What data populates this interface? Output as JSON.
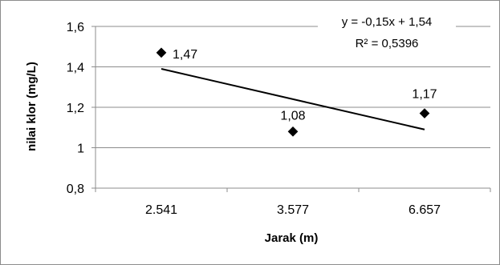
{
  "chart_data": {
    "type": "scatter",
    "x": [
      "2.541",
      "3.577",
      "6.657"
    ],
    "values": [
      1.47,
      1.08,
      1.17
    ],
    "data_labels": [
      "1,47",
      "1,08",
      "1,17"
    ],
    "xlabel": "Jarak (m)",
    "ylabel": "nilai klor (mg/L)",
    "ylim": [
      0.8,
      1.6
    ],
    "yticks": [
      0.8,
      1.0,
      1.2,
      1.4,
      1.6
    ],
    "ytick_labels": [
      "0,8",
      "1",
      "1,2",
      "1,4",
      "1,6"
    ],
    "grid": "horizontal",
    "legend": "none",
    "marker": "diamond",
    "marker_color": "#000000",
    "trendline": {
      "type": "linear",
      "slope": -0.15,
      "intercept": 1.54,
      "equation_label": "y = -0,15x + 1,54",
      "r2_label": "R² = 0,5396",
      "color": "#000000"
    }
  }
}
